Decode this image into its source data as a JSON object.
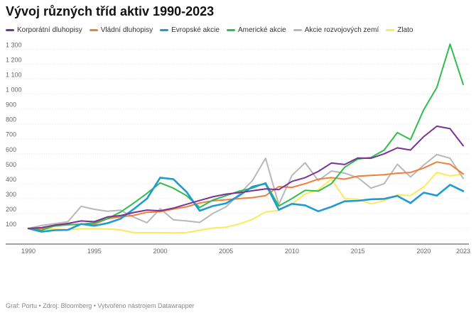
{
  "chart_data": {
    "type": "line",
    "title": "Vývoj různých tříd aktiv 1990-2023",
    "x": [
      1990,
      1991,
      1992,
      1993,
      1994,
      1995,
      1996,
      1997,
      1998,
      1999,
      2000,
      2001,
      2002,
      2003,
      2004,
      2005,
      2006,
      2007,
      2008,
      2009,
      2010,
      2011,
      2012,
      2013,
      2014,
      2015,
      2016,
      2017,
      2018,
      2019,
      2020,
      2021,
      2022,
      2023
    ],
    "xticks": [
      "1990",
      "1995",
      "2000",
      "2005",
      "2010",
      "2015",
      "2020",
      "2023"
    ],
    "xtick_years": [
      1990,
      1995,
      2000,
      2005,
      2010,
      2015,
      2020,
      2023
    ],
    "ylim": [
      0,
      1350
    ],
    "yticks": [
      "100",
      "200",
      "300",
      "400",
      "500",
      "600",
      "700",
      "800",
      "900",
      "1 000",
      "1 100",
      "1 200",
      "1 300"
    ],
    "ytick_values": [
      100,
      200,
      300,
      400,
      500,
      600,
      700,
      800,
      900,
      1000,
      1100,
      1200,
      1300
    ],
    "grid": true,
    "legend_position": "top",
    "series": [
      {
        "name": "Korporátní dluhopisy",
        "color": "#7b3294",
        "values": [
          100,
          105,
          122,
          133,
          150,
          145,
          177,
          186,
          207,
          223,
          218,
          236,
          262,
          287,
          312,
          330,
          340,
          352,
          365,
          360,
          415,
          440,
          482,
          538,
          528,
          572,
          570,
          600,
          640,
          625,
          715,
          785,
          768,
          654
        ]
      },
      {
        "name": "Vládní dluhopisy",
        "color": "#f07f3c",
        "values": [
          100,
          100,
          115,
          125,
          128,
          128,
          165,
          178,
          188,
          208,
          212,
          230,
          245,
          270,
          285,
          292,
          300,
          306,
          320,
          380,
          375,
          400,
          430,
          440,
          430,
          450,
          455,
          460,
          470,
          475,
          505,
          545,
          530,
          465
        ]
      },
      {
        "name": "Evropské akcie",
        "color": "#1f9bd1",
        "values": [
          100,
          78,
          88,
          90,
          130,
          118,
          135,
          165,
          230,
          300,
          440,
          430,
          345,
          218,
          250,
          268,
          320,
          380,
          400,
          225,
          265,
          255,
          215,
          245,
          282,
          285,
          295,
          298,
          318,
          270,
          340,
          320,
          392,
          350
        ]
      },
      {
        "name": "Americké akcie",
        "color": "#2ebd4e",
        "values": [
          100,
          88,
          118,
          125,
          128,
          138,
          165,
          210,
          270,
          335,
          405,
          370,
          320,
          240,
          290,
          320,
          350,
          370,
          405,
          250,
          300,
          355,
          350,
          400,
          510,
          565,
          575,
          625,
          742,
          695,
          895,
          1045,
          1335,
          1065
        ]
      },
      {
        "name": "Akcie rozvojových zemí",
        "color": "#b8b8b8",
        "values": [
          100,
          120,
          132,
          145,
          248,
          228,
          215,
          222,
          175,
          138,
          232,
          158,
          150,
          140,
          200,
          245,
          330,
          420,
          570,
          260,
          455,
          540,
          420,
          485,
          470,
          440,
          370,
          400,
          530,
          445,
          525,
          595,
          570,
          435
        ]
      },
      {
        "name": "Zlato",
        "color": "#ffe85a",
        "values": [
          100,
          100,
          95,
          90,
          98,
          98,
          97,
          90,
          72,
          72,
          72,
          70,
          72,
          88,
          102,
          108,
          130,
          160,
          210,
          220,
          265,
          330,
          360,
          430,
          300,
          295,
          265,
          285,
          325,
          320,
          378,
          475,
          452,
          465
        ]
      }
    ]
  },
  "footer": {
    "text": "Graf: Portu • Zdroj: Bloomberg • Vytvořeno nástrojem Datawrapper"
  }
}
